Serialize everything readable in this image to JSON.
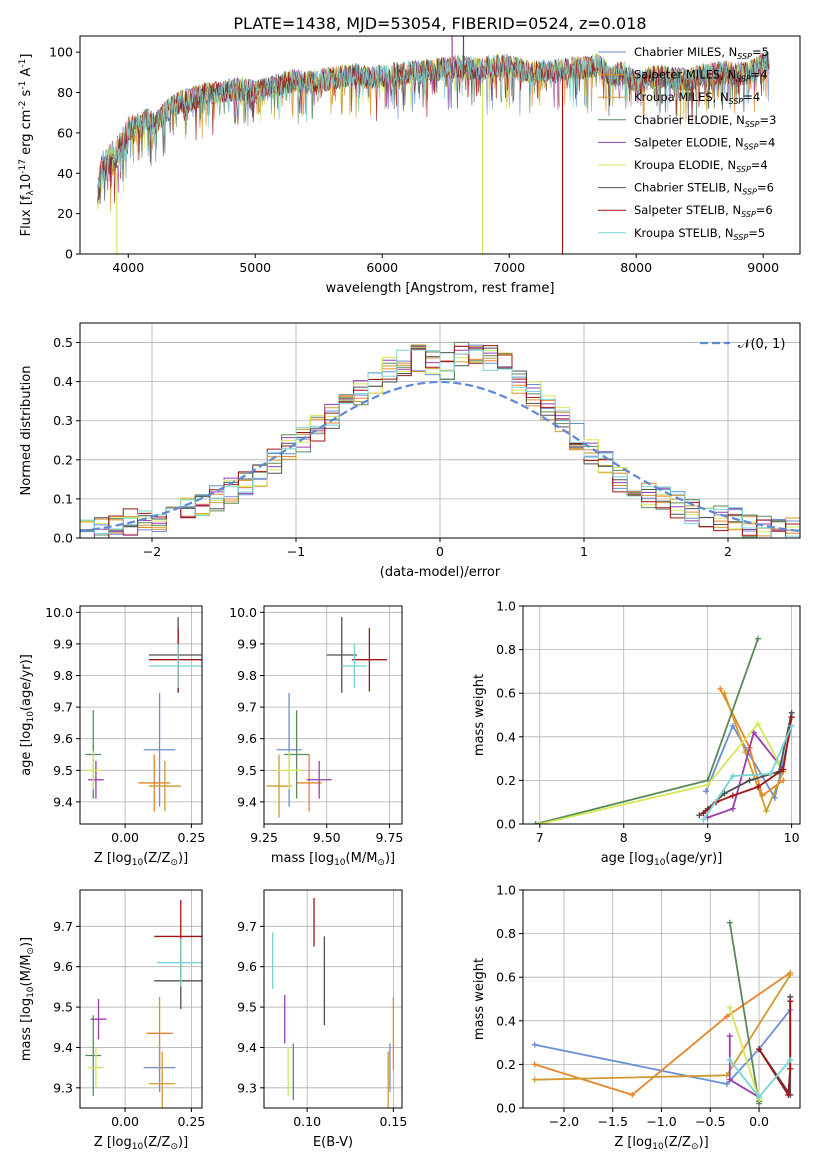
{
  "figure_title": "PLATE=1438, MJD=53054, FIBERID=0524, z=0.018",
  "legend_series": [
    {
      "name": "Chabrier MILES, N$_{SSP}$=5",
      "label_base": "Chabrier MILES, N",
      "label_sub": "SSP",
      "label_end": "=5",
      "color": "#6a8fd3"
    },
    {
      "name": "Salpeter MILES, N$_{SSP}$=4",
      "label_base": "Salpeter MILES, N",
      "label_sub": "SSP",
      "label_end": "=4",
      "color": "#e8862d"
    },
    {
      "name": "Kroupa MILES, N$_{SSP}$=4",
      "label_base": "Kroupa MILES, N",
      "label_sub": "SSP",
      "label_end": "=4",
      "color": "#d19a2e"
    },
    {
      "name": "Chabrier ELODIE, N$_{SSP}$=3",
      "label_base": "Chabrier ELODIE, N",
      "label_sub": "SSP",
      "label_end": "=3",
      "color": "#5a8a5a"
    },
    {
      "name": "Salpeter ELODIE, N$_{SSP}$=4",
      "label_base": "Salpeter ELODIE, N",
      "label_sub": "SSP",
      "label_end": "=4",
      "color": "#9a3fb0"
    },
    {
      "name": "Kroupa ELODIE, N$_{SSP}$=4",
      "label_base": "Kroupa ELODIE, N",
      "label_sub": "SSP",
      "label_end": "=4",
      "color": "#d6e85a"
    },
    {
      "name": "Chabrier STELIB, N$_{SSP}$=6",
      "label_base": "Chabrier STELIB, N",
      "label_sub": "SSP",
      "label_end": "=6",
      "color": "#505050"
    },
    {
      "name": "Salpeter STELIB, N$_{SSP}$=6",
      "label_base": "Salpeter STELIB, N",
      "label_sub": "SSP",
      "label_end": "=6",
      "color": "#a01414"
    },
    {
      "name": "Kroupa STELIB, N$_{SSP}$=5",
      "label_base": "Kroupa STELIB, N",
      "label_sub": "SSP",
      "label_end": "=5",
      "color": "#78d4d4"
    }
  ],
  "chart_data": [
    {
      "id": "spectrum",
      "type": "line",
      "xlabel": "wavelength [Angstrom, rest frame]",
      "ylabel": "Flux [f$_\\lambda$10$^{-17}$ erg cm$^{-2}$ s$^{-1}$ A$^{-1}$]",
      "ylabel_parts": [
        "Flux [f",
        "λ",
        "10",
        "−17",
        " erg cm",
        "−2",
        " s",
        "−1",
        " A",
        "−1",
        "]"
      ],
      "xlim": [
        3620,
        9290
      ],
      "ylim": [
        0,
        108
      ],
      "xticks": [
        4000,
        5000,
        6000,
        7000,
        8000,
        9000
      ],
      "yticks": [
        0,
        20,
        40,
        60,
        80,
        100
      ],
      "x": [
        3760,
        3800,
        3850,
        3900,
        3950,
        4000,
        4050,
        4100,
        4150,
        4200,
        4300,
        4400,
        4500,
        4600,
        4700,
        4800,
        4900,
        5000,
        5100,
        5200,
        5300,
        5400,
        5500,
        5600,
        5700,
        5800,
        5900,
        6000,
        6100,
        6200,
        6300,
        6400,
        6500,
        6600,
        6700,
        6800,
        6900,
        7000,
        7100,
        7200,
        7300,
        7400,
        7500,
        7600,
        7700,
        7800,
        7900,
        8000,
        8100,
        8200,
        8300,
        8400,
        8500,
        8600,
        8700,
        8800,
        8900,
        9000,
        9100
      ],
      "flux": [
        35,
        47,
        52,
        54,
        58,
        62,
        64,
        63,
        67,
        64,
        71,
        75,
        77,
        79,
        80,
        81,
        82,
        80,
        82,
        84,
        86,
        85,
        86,
        87,
        88,
        89,
        87,
        88,
        89,
        90,
        90,
        91,
        92,
        93,
        92,
        92,
        93,
        93,
        91,
        90,
        90,
        91,
        92,
        92,
        94,
        88,
        90,
        85,
        87,
        88,
        87,
        86,
        88,
        89,
        90,
        89,
        90,
        94,
        96
      ],
      "vlines": [
        {
          "x": 3910,
          "y0": 0,
          "y1": 40,
          "color": "#d6e85a"
        },
        {
          "x": 6790,
          "y0": 0,
          "y1": 85,
          "color": "#d6e85a"
        },
        {
          "x": 7420,
          "y0": 0,
          "y1": 88,
          "color": "#a01414"
        },
        {
          "x": 6550,
          "y0": 85,
          "y1": 108,
          "color": "#9a3fb0"
        },
        {
          "x": 6640,
          "y0": 88,
          "y1": 108,
          "color": "#505050"
        }
      ]
    },
    {
      "id": "residual-histogram",
      "type": "histogram",
      "xlabel": "(data-model)/error",
      "ylabel": "Normed distribution",
      "xlim": [
        -2.5,
        2.5
      ],
      "ylim": [
        0,
        0.55
      ],
      "xticks": [
        -2,
        -1,
        0,
        1,
        2
      ],
      "yticks": [
        0.0,
        0.1,
        0.2,
        0.3,
        0.4,
        0.5
      ],
      "bins": [
        -2.5,
        -2.4,
        -2.3,
        -2.2,
        -2.1,
        -2.0,
        -1.9,
        -1.8,
        -1.7,
        -1.6,
        -1.5,
        -1.4,
        -1.3,
        -1.2,
        -1.1,
        -1.0,
        -0.9,
        -0.8,
        -0.7,
        -0.6,
        -0.5,
        -0.4,
        -0.3,
        -0.2,
        -0.1,
        0.0,
        0.1,
        0.2,
        0.3,
        0.4,
        0.5,
        0.6,
        0.7,
        0.8,
        0.9,
        1.0,
        1.1,
        1.2,
        1.3,
        1.4,
        1.5,
        1.6,
        1.7,
        1.8,
        1.9,
        2.0,
        2.1,
        2.2,
        2.3,
        2.4,
        2.5
      ],
      "base_density": [
        0.02,
        0.025,
        0.03,
        0.04,
        0.045,
        0.05,
        0.06,
        0.075,
        0.085,
        0.1,
        0.12,
        0.135,
        0.155,
        0.2,
        0.23,
        0.25,
        0.28,
        0.31,
        0.35,
        0.37,
        0.4,
        0.43,
        0.45,
        0.46,
        0.45,
        0.44,
        0.47,
        0.46,
        0.46,
        0.44,
        0.4,
        0.37,
        0.33,
        0.3,
        0.26,
        0.22,
        0.19,
        0.15,
        0.13,
        0.11,
        0.1,
        0.085,
        0.07,
        0.06,
        0.05,
        0.045,
        0.035,
        0.03,
        0.025,
        0.02
      ],
      "reference_curve": {
        "name": "$\\mathcal{N}(0,1)$",
        "label": "𝒩(0, 1)",
        "color": "#5a8ad8"
      }
    },
    {
      "id": "age-vs-metallicity",
      "type": "errorbar",
      "xlabel": "Z [log$_{10}$(Z/Z$_\\odot$)]",
      "ylabel": "age  [log$_{10}$(age/yr)]",
      "xlim": [
        -0.17,
        0.29
      ],
      "ylim": [
        9.33,
        10.02
      ],
      "xticks": [
        0.0,
        0.25
      ],
      "yticks": [
        9.4,
        9.5,
        9.6,
        9.7,
        9.8,
        9.9,
        10.0
      ],
      "points": [
        {
          "s": 0,
          "x": 0.13,
          "y": 9.565,
          "xerr": 0.06,
          "yerr": 0.18
        },
        {
          "s": 1,
          "x": 0.11,
          "y": 9.46,
          "xerr": 0.06,
          "yerr": 0.09
        },
        {
          "s": 2,
          "x": 0.15,
          "y": 9.45,
          "xerr": 0.06,
          "yerr": 0.08
        },
        {
          "s": 3,
          "x": -0.12,
          "y": 9.55,
          "xerr": 0.03,
          "yerr": 0.14
        },
        {
          "s": 4,
          "x": -0.11,
          "y": 9.47,
          "xerr": 0.03,
          "yerr": 0.06
        },
        {
          "s": 5,
          "x": -0.12,
          "y": 9.5,
          "xerr": 0.03,
          "yerr": 0.06
        },
        {
          "s": 6,
          "x": 0.2,
          "y": 9.865,
          "xerr": 0.11,
          "yerr": 0.12
        },
        {
          "s": 7,
          "x": 0.2,
          "y": 9.85,
          "xerr": 0.11,
          "yerr": 0.1
        },
        {
          "s": 8,
          "x": 0.2,
          "y": 9.83,
          "xerr": 0.11,
          "yerr": 0.07
        }
      ]
    },
    {
      "id": "age-vs-mass",
      "type": "errorbar",
      "xlabel": "mass [log$_{10}$(M/M$_\\odot$)]",
      "ylabel": "",
      "xlim": [
        9.25,
        9.8
      ],
      "ylim": [
        9.33,
        10.02
      ],
      "xticks": [
        9.25,
        9.5,
        9.75
      ],
      "yticks": [
        9.4,
        9.5,
        9.6,
        9.7,
        9.8,
        9.9,
        10.0
      ],
      "points": [
        {
          "s": 0,
          "x": 9.35,
          "y": 9.565,
          "xerr": 0.05,
          "yerr": 0.18
        },
        {
          "s": 1,
          "x": 9.43,
          "y": 9.46,
          "xerr": 0.05,
          "yerr": 0.09
        },
        {
          "s": 2,
          "x": 9.31,
          "y": 9.45,
          "xerr": 0.05,
          "yerr": 0.1
        },
        {
          "s": 3,
          "x": 9.38,
          "y": 9.55,
          "xerr": 0.05,
          "yerr": 0.14
        },
        {
          "s": 4,
          "x": 9.47,
          "y": 9.47,
          "xerr": 0.05,
          "yerr": 0.06
        },
        {
          "s": 5,
          "x": 9.35,
          "y": 9.5,
          "xerr": 0.05,
          "yerr": 0.06
        },
        {
          "s": 6,
          "x": 9.56,
          "y": 9.865,
          "xerr": 0.06,
          "yerr": 0.12
        },
        {
          "s": 7,
          "x": 9.67,
          "y": 9.85,
          "xerr": 0.07,
          "yerr": 0.1
        },
        {
          "s": 8,
          "x": 9.61,
          "y": 9.83,
          "xerr": 0.05,
          "yerr": 0.07
        }
      ]
    },
    {
      "id": "mass-weight-vs-age",
      "type": "line",
      "xlabel": "age  [log$_{10}$(age/yr)]",
      "ylabel": "mass weight",
      "xlim": [
        6.8,
        10.1
      ],
      "ylim": [
        0,
        1
      ],
      "xticks": [
        7,
        8,
        9,
        10
      ],
      "yticks": [
        0.0,
        0.2,
        0.4,
        0.6,
        0.8,
        1.0
      ],
      "series": [
        {
          "s": 0,
          "x": [
            8.98,
            9.3,
            9.8,
            10.0
          ],
          "y": [
            0.15,
            0.45,
            0.12,
            0.45
          ]
        },
        {
          "s": 1,
          "x": [
            9.15,
            9.5,
            9.65,
            9.9
          ],
          "y": [
            0.62,
            0.35,
            0.13,
            0.2
          ]
        },
        {
          "s": 2,
          "x": [
            9.2,
            9.45,
            9.7,
            9.9
          ],
          "y": [
            0.6,
            0.33,
            0.06,
            0.24
          ]
        },
        {
          "s": 3,
          "x": [
            6.95,
            9.0,
            9.6
          ],
          "y": [
            0.0,
            0.2,
            0.85
          ]
        },
        {
          "s": 4,
          "x": [
            9.0,
            9.3,
            9.55,
            9.9
          ],
          "y": [
            0.03,
            0.07,
            0.42,
            0.25
          ]
        },
        {
          "s": 5,
          "x": [
            7.0,
            9.0,
            9.6,
            9.85
          ],
          "y": [
            0.0,
            0.18,
            0.46,
            0.28
          ]
        },
        {
          "s": 6,
          "x": [
            8.9,
            9.0,
            9.2,
            9.5,
            9.85,
            10.0
          ],
          "y": [
            0.04,
            0.07,
            0.14,
            0.2,
            0.24,
            0.51
          ]
        },
        {
          "s": 7,
          "x": [
            8.95,
            9.1,
            9.3,
            9.6,
            9.9,
            10.0
          ],
          "y": [
            0.05,
            0.1,
            0.13,
            0.17,
            0.25,
            0.49
          ]
        },
        {
          "s": 8,
          "x": [
            8.95,
            9.3,
            9.75,
            10.0
          ],
          "y": [
            0.02,
            0.22,
            0.23,
            0.45
          ]
        }
      ]
    },
    {
      "id": "mass-vs-metallicity",
      "type": "errorbar",
      "xlabel": "Z [log$_{10}$(Z/Z$_\\odot$)]",
      "ylabel": "mass [log$_{10}$(M/M$_\\odot$)]",
      "xlim": [
        -0.17,
        0.29
      ],
      "ylim": [
        9.25,
        9.79
      ],
      "xticks": [
        0.0,
        0.25
      ],
      "yticks": [
        9.3,
        9.4,
        9.5,
        9.6,
        9.7
      ],
      "points": [
        {
          "s": 0,
          "x": 0.13,
          "y": 9.35,
          "xerr": 0.06,
          "yerr": 0.06
        },
        {
          "s": 1,
          "x": 0.13,
          "y": 9.435,
          "xerr": 0.05,
          "yerr": 0.09
        },
        {
          "s": 2,
          "x": 0.14,
          "y": 9.31,
          "xerr": 0.05,
          "yerr": 0.08
        },
        {
          "s": 3,
          "x": -0.12,
          "y": 9.38,
          "xerr": 0.03,
          "yerr": 0.1
        },
        {
          "s": 4,
          "x": -0.1,
          "y": 9.47,
          "xerr": 0.03,
          "yerr": 0.05
        },
        {
          "s": 5,
          "x": -0.11,
          "y": 9.35,
          "xerr": 0.03,
          "yerr": 0.05
        },
        {
          "s": 6,
          "x": 0.21,
          "y": 9.565,
          "xerr": 0.1,
          "yerr": 0.07
        },
        {
          "s": 7,
          "x": 0.21,
          "y": 9.675,
          "xerr": 0.1,
          "yerr": 0.09
        },
        {
          "s": 8,
          "x": 0.21,
          "y": 9.61,
          "xerr": 0.09,
          "yerr": 0.06
        }
      ]
    },
    {
      "id": "mass-vs-extinction",
      "type": "errorbar",
      "xlabel": "E(B-V)",
      "ylabel": "",
      "xlim": [
        0.075,
        0.155
      ],
      "ylim": [
        9.25,
        9.79
      ],
      "xticks": [
        0.1,
        0.15
      ],
      "yticks": [
        9.3,
        9.4,
        9.5,
        9.6,
        9.7
      ],
      "points": [
        {
          "s": 0,
          "x": 0.148,
          "y": 9.35,
          "xerr": 0,
          "yerr": 0.06
        },
        {
          "s": 1,
          "x": 0.15,
          "y": 9.435,
          "xerr": 0,
          "yerr": 0.09
        },
        {
          "s": 2,
          "x": 0.147,
          "y": 9.31,
          "xerr": 0,
          "yerr": 0.08
        },
        {
          "s": 3,
          "x": 0.092,
          "y": 9.34,
          "xerr": 0,
          "yerr": 0.07
        },
        {
          "s": 4,
          "x": 0.087,
          "y": 9.47,
          "xerr": 0,
          "yerr": 0.06
        },
        {
          "s": 5,
          "x": 0.089,
          "y": 9.34,
          "xerr": 0,
          "yerr": 0.06
        },
        {
          "s": 6,
          "x": 0.11,
          "y": 9.565,
          "xerr": 0,
          "yerr": 0.11
        },
        {
          "s": 7,
          "x": 0.104,
          "y": 9.71,
          "xerr": 0,
          "yerr": 0.06
        },
        {
          "s": 8,
          "x": 0.08,
          "y": 9.615,
          "xerr": 0,
          "yerr": 0.07
        }
      ]
    },
    {
      "id": "mass-weight-vs-metallicity",
      "type": "line",
      "xlabel": "Z [log$_{10}$(Z/Z$_\\odot$)]",
      "ylabel": "mass weight",
      "xlim": [
        -2.42,
        0.42
      ],
      "ylim": [
        0,
        1
      ],
      "xticks": [
        -2.0,
        -1.5,
        -1.0,
        -0.5,
        0.0
      ],
      "yticks": [
        0.0,
        0.2,
        0.4,
        0.6,
        0.8,
        1.0
      ],
      "series": [
        {
          "s": 0,
          "x": [
            -2.3,
            -0.33,
            0.0,
            0.32
          ],
          "y": [
            0.29,
            0.11,
            0.27,
            0.45
          ]
        },
        {
          "s": 1,
          "x": [
            -2.3,
            -1.3,
            -0.33,
            0.32
          ],
          "y": [
            0.2,
            0.06,
            0.42,
            0.62
          ]
        },
        {
          "s": 2,
          "x": [
            -2.3,
            -0.33,
            0.32
          ],
          "y": [
            0.13,
            0.15,
            0.61
          ]
        },
        {
          "s": 3,
          "x": [
            -0.3,
            0.0,
            0.0
          ],
          "y": [
            0.85,
            0.02,
            0.03
          ]
        },
        {
          "s": 4,
          "x": [
            -0.3,
            -0.3,
            0.0
          ],
          "y": [
            0.33,
            0.13,
            0.05
          ]
        },
        {
          "s": 5,
          "x": [
            -0.3,
            0.0,
            0.0
          ],
          "y": [
            0.46,
            0.04,
            0.05
          ]
        },
        {
          "s": 6,
          "x": [
            0.0,
            0.32,
            0.32
          ],
          "y": [
            0.27,
            0.06,
            0.51
          ]
        },
        {
          "s": 7,
          "x": [
            0.0,
            0.3,
            0.32,
            0.32
          ],
          "y": [
            0.27,
            0.06,
            0.18,
            0.49
          ]
        },
        {
          "s": 8,
          "x": [
            -0.3,
            0.0,
            0.32
          ],
          "y": [
            0.22,
            0.05,
            0.22
          ]
        }
      ]
    }
  ]
}
